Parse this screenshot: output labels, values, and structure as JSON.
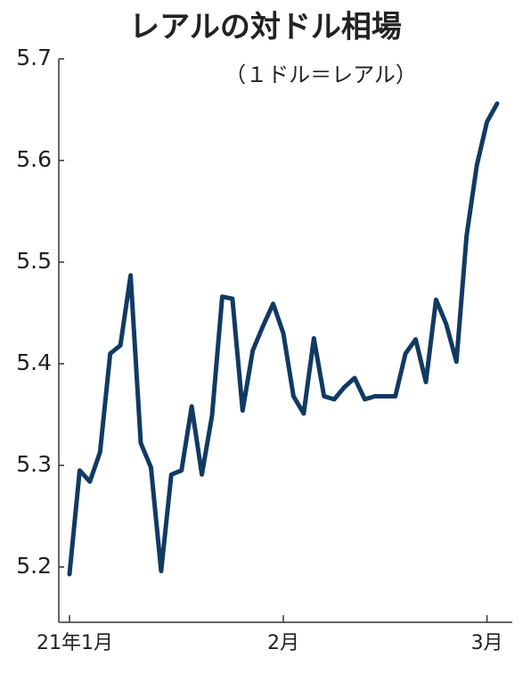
{
  "chart_data": {
    "type": "line",
    "title": "レアルの対ドル相場",
    "subtitle": "（１ドル＝レアル）",
    "categories": [
      "21年1月",
      null,
      null,
      null,
      null,
      null,
      null,
      null,
      null,
      null,
      null,
      null,
      null,
      null,
      null,
      null,
      null,
      null,
      null,
      null,
      null,
      "2月",
      null,
      null,
      null,
      null,
      null,
      null,
      null,
      null,
      null,
      null,
      null,
      null,
      null,
      null,
      null,
      null,
      null,
      null,
      null,
      "3月",
      null
    ],
    "series": [
      {
        "name": "レアル",
        "color": "#113a63",
        "values": [
          5.193,
          5.295,
          5.284,
          5.313,
          5.41,
          5.418,
          5.487,
          5.322,
          5.298,
          5.196,
          5.291,
          5.295,
          5.358,
          5.291,
          5.349,
          5.466,
          5.464,
          5.354,
          5.413,
          5.437,
          5.459,
          5.43,
          5.368,
          5.351,
          5.425,
          5.368,
          5.365,
          5.377,
          5.386,
          5.365,
          5.368,
          5.368,
          5.368,
          5.41,
          5.424,
          5.382,
          5.463,
          5.439,
          5.402,
          5.526,
          5.595,
          5.638,
          5.656
        ]
      }
    ],
    "ylim": [
      5.15,
      5.7
    ],
    "yticks": [
      5.2,
      5.3,
      5.4,
      5.5,
      5.6,
      5.7
    ],
    "y_reversed": true
  }
}
